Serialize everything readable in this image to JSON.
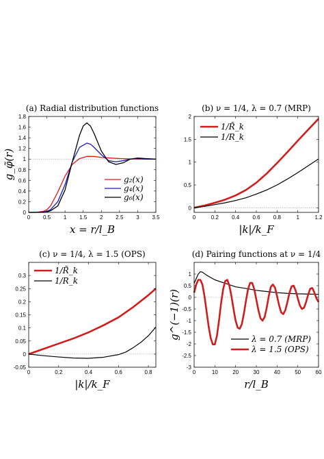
{
  "chart_data": [
    {
      "type": "line",
      "title": "(a) Radial distribution functions",
      "xlabel": "x = r/l_B",
      "ylabel": "g_φ̃(r)",
      "xlim": [
        0,
        3.5
      ],
      "ylim": [
        0,
        1.8
      ],
      "xticks": [
        "0",
        "0.5",
        "1",
        "1.5",
        "2",
        "2.5",
        "3",
        "3.5"
      ],
      "yticks": [
        "0",
        "0.2",
        "0.4",
        "0.6",
        "0.8",
        "1",
        "1.2",
        "1.4",
        "1.6",
        "1.8"
      ],
      "legend": "bottom-right",
      "series": [
        {
          "name": "g₂(x)",
          "color": "#e0191c",
          "width": 1.3,
          "x": [
            0,
            0.2,
            0.4,
            0.5,
            0.6,
            0.8,
            1.0,
            1.2,
            1.4,
            1.6,
            1.8,
            2.0,
            2.5,
            3.0,
            3.5
          ],
          "y": [
            0,
            0,
            0.02,
            0.05,
            0.12,
            0.38,
            0.68,
            0.9,
            1.01,
            1.05,
            1.05,
            1.03,
            1.01,
            1.0,
            1.0
          ]
        },
        {
          "name": "g₄(x)",
          "color": "#1919c8",
          "width": 1.3,
          "x": [
            0,
            0.2,
            0.4,
            0.5,
            0.6,
            0.8,
            1.0,
            1.2,
            1.4,
            1.6,
            1.7,
            1.8,
            2.0,
            2.2,
            2.4,
            2.6,
            2.8,
            3.0,
            3.2,
            3.5
          ],
          "y": [
            0,
            0,
            0.01,
            0.02,
            0.05,
            0.2,
            0.52,
            0.95,
            1.22,
            1.3,
            1.28,
            1.22,
            1.08,
            0.97,
            0.95,
            0.97,
            1.0,
            1.01,
            1.0,
            1.0
          ]
        },
        {
          "name": "g₆(x)",
          "color": "#000000",
          "width": 1.3,
          "x": [
            0,
            0.2,
            0.4,
            0.5,
            0.6,
            0.8,
            1.0,
            1.2,
            1.4,
            1.5,
            1.6,
            1.7,
            1.8,
            2.0,
            2.2,
            2.4,
            2.6,
            2.8,
            3.0,
            3.2,
            3.5
          ],
          "y": [
            0,
            0,
            0.0,
            0.01,
            0.03,
            0.12,
            0.42,
            0.95,
            1.45,
            1.62,
            1.68,
            1.62,
            1.48,
            1.15,
            0.95,
            0.9,
            0.93,
            1.0,
            1.02,
            1.01,
            1.0
          ]
        }
      ]
    },
    {
      "type": "line",
      "title": "(b) ν = 1/4,  λ = 0.7 (MRP)",
      "xlabel": "|k|/k_F",
      "ylabel": "",
      "xlim": [
        0,
        1.2
      ],
      "ylim": [
        -0.1,
        2.0
      ],
      "xticks": [
        "0",
        "0.2",
        "0.4",
        "0.6",
        "0.8",
        "1",
        "1.2"
      ],
      "yticks": [
        "0",
        "0.5",
        "1",
        "1.5",
        "2"
      ],
      "legend": "top-left",
      "series": [
        {
          "name": "1/R̃_k",
          "color": "#d01c1c",
          "width": 2.6,
          "x": [
            0,
            0.1,
            0.2,
            0.3,
            0.4,
            0.5,
            0.6,
            0.7,
            0.8,
            0.9,
            1.0,
            1.1,
            1.2
          ],
          "y": [
            0,
            0.05,
            0.11,
            0.18,
            0.27,
            0.39,
            0.55,
            0.75,
            0.98,
            1.22,
            1.47,
            1.71,
            1.95
          ]
        },
        {
          "name": "1/R_k",
          "color": "#000000",
          "width": 1.2,
          "x": [
            0,
            0.1,
            0.2,
            0.3,
            0.4,
            0.5,
            0.6,
            0.7,
            0.8,
            0.9,
            1.0,
            1.1,
            1.2
          ],
          "y": [
            0,
            0.03,
            0.07,
            0.11,
            0.16,
            0.22,
            0.3,
            0.39,
            0.5,
            0.63,
            0.77,
            0.92,
            1.07
          ]
        }
      ]
    },
    {
      "type": "line",
      "title": "(c) ν = 1/4,  λ = 1.5 (OPS)",
      "xlabel": "|k|/k_F",
      "ylabel": "",
      "xlim": [
        0,
        0.85
      ],
      "ylim": [
        -0.05,
        0.35
      ],
      "xticks": [
        "0",
        "0.2",
        "0.4",
        "0.6",
        "0.8"
      ],
      "yticks": [
        "-0.05",
        "0",
        "0.05",
        "0.1",
        "0.15",
        "0.2",
        "0.25",
        "0.3"
      ],
      "legend": "top-left",
      "series": [
        {
          "name": "1/R̃_k",
          "color": "#d01c1c",
          "width": 2.6,
          "x": [
            0,
            0.1,
            0.2,
            0.3,
            0.4,
            0.5,
            0.6,
            0.7,
            0.8,
            0.85
          ],
          "y": [
            0,
            0.02,
            0.04,
            0.06,
            0.083,
            0.11,
            0.14,
            0.18,
            0.225,
            0.25
          ]
        },
        {
          "name": "1/R_k",
          "color": "#000000",
          "width": 1.2,
          "x": [
            0,
            0.1,
            0.2,
            0.3,
            0.4,
            0.5,
            0.6,
            0.65,
            0.7,
            0.75,
            0.8,
            0.85
          ],
          "y": [
            0,
            -0.006,
            -0.011,
            -0.015,
            -0.016,
            -0.012,
            -0.002,
            0.008,
            0.025,
            0.045,
            0.07,
            0.103
          ]
        }
      ]
    },
    {
      "type": "line",
      "title": "(d) Pairing functions at ν = 1/4",
      "xlabel": "r/l_B",
      "ylabel": "g^(−1)(r)",
      "xlim": [
        0,
        60
      ],
      "ylim": [
        -3,
        1.5
      ],
      "xticks": [
        "0",
        "10",
        "20",
        "30",
        "40",
        "50",
        "60"
      ],
      "yticks": [
        "-3",
        "-2.5",
        "-2",
        "-1.5",
        "-1",
        "-0.5",
        "0",
        "0.5",
        "1"
      ],
      "legend": "bottom-right",
      "series": [
        {
          "name": "λ = 0.7 (MRP)",
          "color": "#000000",
          "width": 1.2,
          "x": [
            0,
            1,
            2,
            3,
            4,
            6,
            8,
            10,
            15,
            20,
            25,
            30,
            35,
            40,
            45,
            50,
            55,
            60
          ],
          "y": [
            0.6,
            0.8,
            1.0,
            1.1,
            1.08,
            0.95,
            0.85,
            0.75,
            0.6,
            0.45,
            0.38,
            0.3,
            0.25,
            0.2,
            0.17,
            0.15,
            0.14,
            0.13
          ]
        },
        {
          "name": "λ = 1.5 (OPS)",
          "color": "#d01c1c",
          "width": 2.6,
          "x": [
            0,
            1,
            2,
            3,
            4,
            5,
            6,
            7,
            8,
            9,
            10,
            11,
            12,
            13,
            14,
            15,
            16,
            17,
            18,
            19,
            20,
            21,
            22,
            23,
            24,
            25,
            26,
            27,
            28,
            29,
            30,
            31,
            32,
            33,
            34,
            35,
            36,
            37,
            38,
            39,
            40,
            41,
            42,
            43,
            44,
            45,
            46,
            47,
            48,
            49,
            50,
            51,
            52,
            53,
            54,
            55,
            56,
            57,
            58,
            59,
            60
          ],
          "y": [
            0.2,
            0.55,
            0.75,
            0.75,
            0.55,
            0.05,
            -0.6,
            -1.25,
            -1.75,
            -2.02,
            -2.02,
            -1.65,
            -1.0,
            -0.25,
            0.35,
            0.7,
            0.75,
            0.5,
            0.05,
            -0.5,
            -1.0,
            -1.3,
            -1.35,
            -1.15,
            -0.7,
            -0.15,
            0.35,
            0.62,
            0.62,
            0.35,
            -0.1,
            -0.55,
            -0.9,
            -1.0,
            -0.85,
            -0.45,
            0.05,
            0.45,
            0.55,
            0.42,
            0.05,
            -0.35,
            -0.65,
            -0.72,
            -0.55,
            -0.2,
            0.2,
            0.47,
            0.5,
            0.28,
            -0.05,
            -0.35,
            -0.5,
            -0.45,
            -0.2,
            0.12,
            0.37,
            0.4,
            0.2,
            -0.05,
            -0.2
          ]
        }
      ]
    }
  ]
}
